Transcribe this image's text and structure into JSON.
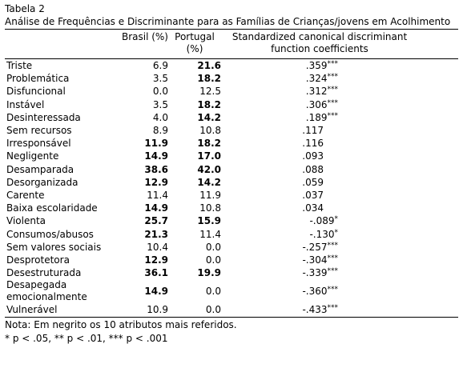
{
  "caption": {
    "label": "Tabela 2",
    "title": "Análise de Frequências e Discriminante para as Famílias de Crianças/jovens em Acolhimento"
  },
  "table": {
    "header": [
      "",
      "Brasil (%)",
      "Portugal (%)",
      "Standardized canonical discriminant function coefficients"
    ],
    "rows": [
      {
        "label": "Triste",
        "brasil": "6.9",
        "portugal": "21.6",
        "coef": ".359",
        "sig": "***",
        "bold": [
          false,
          true
        ]
      },
      {
        "label": "Problemática",
        "brasil": "3.5",
        "portugal": "18.2",
        "coef": ".324",
        "sig": "***",
        "bold": [
          false,
          true
        ]
      },
      {
        "label": "Disfuncional",
        "brasil": "0.0",
        "portugal": "12.5",
        "coef": ".312",
        "sig": "***",
        "bold": [
          false,
          false
        ]
      },
      {
        "label": "Instável",
        "brasil": "3.5",
        "portugal": "18.2",
        "coef": ".306",
        "sig": "***",
        "bold": [
          false,
          true
        ]
      },
      {
        "label": "Desinteressada",
        "brasil": "4.0",
        "portugal": "14.2",
        "coef": ".189",
        "sig": "***",
        "bold": [
          false,
          true
        ]
      },
      {
        "label": "Sem recursos",
        "brasil": "8.9",
        "portugal": "10.8",
        "coef": ".117",
        "sig": "",
        "bold": [
          false,
          false
        ]
      },
      {
        "label": "Irresponsável",
        "brasil": "11.9",
        "portugal": "18.2",
        "coef": ".116",
        "sig": "",
        "bold": [
          true,
          true
        ]
      },
      {
        "label": "Negligente",
        "brasil": "14.9",
        "portugal": "17.0",
        "coef": ".093",
        "sig": "",
        "bold": [
          true,
          true
        ]
      },
      {
        "label": "Desamparada",
        "brasil": "38.6",
        "portugal": "42.0",
        "coef": ".088",
        "sig": "",
        "bold": [
          true,
          true
        ]
      },
      {
        "label": "Desorganizada",
        "brasil": "12.9",
        "portugal": "14.2",
        "coef": ".059",
        "sig": "",
        "bold": [
          true,
          true
        ]
      },
      {
        "label": "Carente",
        "brasil": "11.4",
        "portugal": "11.9",
        "coef": ".037",
        "sig": "",
        "bold": [
          false,
          false
        ]
      },
      {
        "label": "Baixa escolaridade",
        "brasil": "14.9",
        "portugal": "10.8",
        "coef": ".034",
        "sig": "",
        "bold": [
          true,
          false
        ]
      },
      {
        "label": "Violenta",
        "brasil": "25.7",
        "portugal": "15.9",
        "coef": "-.089",
        "sig": "*",
        "bold": [
          true,
          true
        ]
      },
      {
        "label": "Consumos/abusos",
        "brasil": "21.3",
        "portugal": "11.4",
        "coef": "-.130",
        "sig": "*",
        "bold": [
          true,
          false
        ]
      },
      {
        "label": "Sem valores sociais",
        "brasil": "10.4",
        "portugal": "0.0",
        "coef": "-.257",
        "sig": "***",
        "bold": [
          false,
          false
        ]
      },
      {
        "label": "Desprotetora",
        "brasil": "12.9",
        "portugal": "0.0",
        "coef": "-.304",
        "sig": "***",
        "bold": [
          true,
          false
        ]
      },
      {
        "label": "Desestruturada",
        "brasil": "36.1",
        "portugal": "19.9",
        "coef": "-.339",
        "sig": "***",
        "bold": [
          true,
          true
        ]
      },
      {
        "label": "Desapegada emocionalmente",
        "brasil": "14.9",
        "portugal": "0.0",
        "coef": "-.360",
        "sig": "***",
        "bold": [
          true,
          false
        ]
      },
      {
        "label": "Vulnerável",
        "brasil": "10.9",
        "portugal": "0.0",
        "coef": "-.433",
        "sig": "***",
        "bold": [
          false,
          false
        ]
      }
    ]
  },
  "notes": [
    "Nota: Em negrito os 10 atributos mais referidos.",
    "* p < .05, ** p < .01, *** p < .001"
  ]
}
